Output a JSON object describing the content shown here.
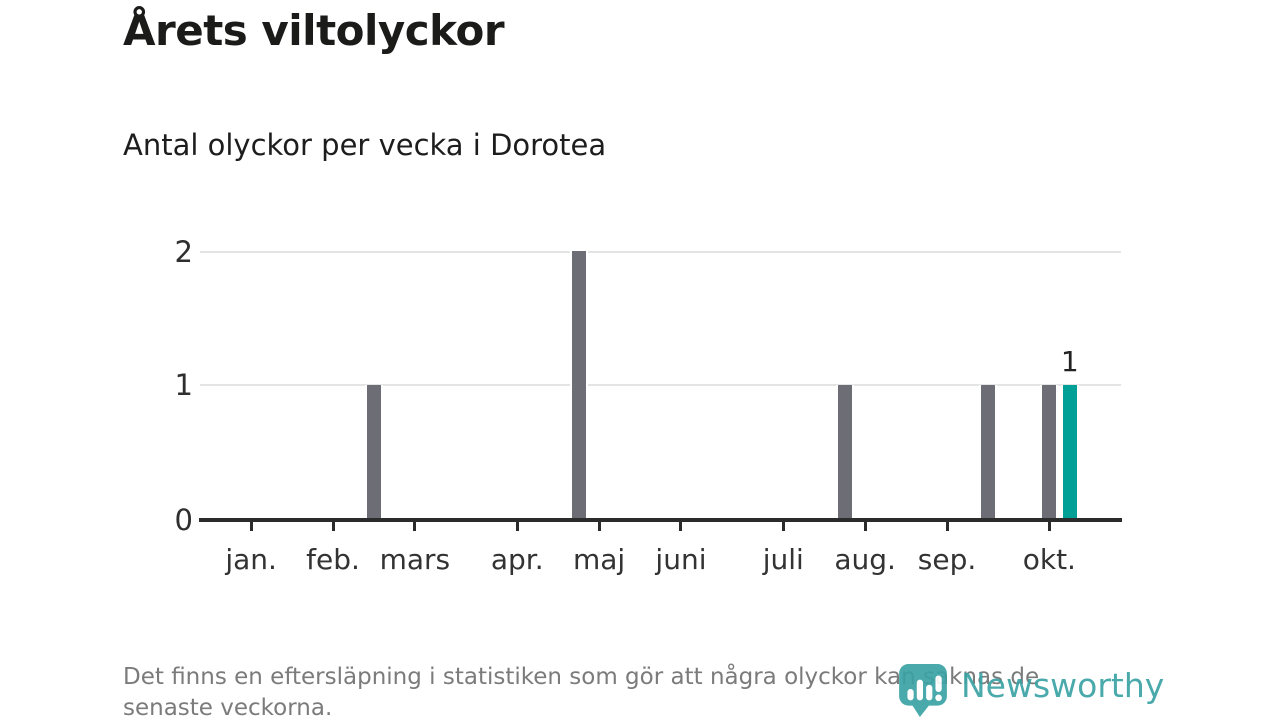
{
  "header": {
    "title": "Årets viltolyckor",
    "subtitle": "Antal olyckor per vecka i Dorotea"
  },
  "chart_data": {
    "type": "bar",
    "title": "Årets viltolyckor",
    "subtitle": "Antal olyckor per vecka i Dorotea",
    "x_unit": "vecka (weekly bars across the year, labeled by month)",
    "weeks_total": 45,
    "points": [
      {
        "week": 9,
        "value": 1
      },
      {
        "week": 19,
        "value": 2
      },
      {
        "week": 32,
        "value": 1
      },
      {
        "week": 39,
        "value": 1
      },
      {
        "week": 42,
        "value": 1
      },
      {
        "week": 43,
        "value": 1,
        "highlight": true,
        "data_label": "1"
      }
    ],
    "all_other_weeks_value": 0,
    "month_ticks": [
      {
        "label": "jan.",
        "week": 3
      },
      {
        "label": "feb.",
        "week": 7
      },
      {
        "label": "mars",
        "week": 11
      },
      {
        "label": "apr.",
        "week": 16
      },
      {
        "label": "maj",
        "week": 20
      },
      {
        "label": "juni",
        "week": 24
      },
      {
        "label": "juli",
        "week": 29
      },
      {
        "label": "aug.",
        "week": 33
      },
      {
        "label": "sep.",
        "week": 37
      },
      {
        "label": "okt.",
        "week": 42
      }
    ],
    "y_axis": {
      "ticks": [
        "0",
        "1",
        "2"
      ],
      "ylim": [
        0,
        2
      ]
    },
    "grid": "horizontal gridlines at 1 and 2",
    "legend": "none",
    "colors": {
      "bar": "#6d6d76",
      "highlight": "#00a096",
      "axis": "#2b2b2b",
      "gridline": "#e4e4e4"
    }
  },
  "footer": {
    "note_lines": [
      "Det finns en eftersläpning i statistiken som gör att några olyckor kan saknas de",
      "senaste veckorna."
    ],
    "brand": {
      "name": "Newsworthy",
      "logo_icon": "bar-chart-speech-bubble-pin",
      "color": "#3aa2a4"
    }
  }
}
